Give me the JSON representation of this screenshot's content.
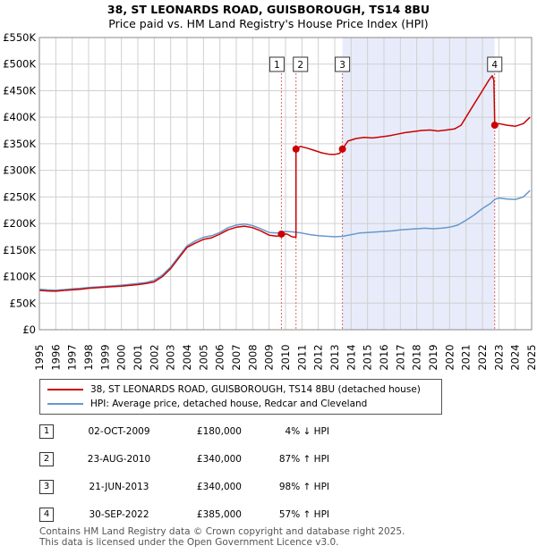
{
  "chart_data": {
    "type": "line",
    "title": "38, ST LEONARDS ROAD, GUISBOROUGH, TS14 8BU",
    "subtitle": "Price paid vs. HM Land Registry's House Price Index (HPI)",
    "xlim": [
      1995,
      2025
    ],
    "ylim": [
      0,
      550000
    ],
    "x_ticks": [
      "1995",
      "1996",
      "1997",
      "1998",
      "1999",
      "2000",
      "2001",
      "2002",
      "2003",
      "2004",
      "2005",
      "2006",
      "2007",
      "2008",
      "2009",
      "2010",
      "2011",
      "2012",
      "2013",
      "2014",
      "2015",
      "2016",
      "2017",
      "2018",
      "2019",
      "2020",
      "2021",
      "2022",
      "2023",
      "2024",
      "2025"
    ],
    "y_ticks": [
      {
        "value": 0,
        "label": "£0"
      },
      {
        "value": 50000,
        "label": "£50K"
      },
      {
        "value": 100000,
        "label": "£100K"
      },
      {
        "value": 150000,
        "label": "£150K"
      },
      {
        "value": 200000,
        "label": "£200K"
      },
      {
        "value": 250000,
        "label": "£250K"
      },
      {
        "value": 300000,
        "label": "£300K"
      },
      {
        "value": 350000,
        "label": "£350K"
      },
      {
        "value": 400000,
        "label": "£400K"
      },
      {
        "value": 450000,
        "label": "£450K"
      },
      {
        "value": 500000,
        "label": "£500K"
      },
      {
        "value": 550000,
        "label": "£550K"
      }
    ],
    "shaded_range": [
      2013.47,
      2022.75
    ],
    "series": [
      {
        "name": "38, ST LEONARDS ROAD, GUISBOROUGH, TS14 8BU (detached house)",
        "color": "#cc0000",
        "points": [
          [
            1995.0,
            74000
          ],
          [
            1995.5,
            73000
          ],
          [
            1996.0,
            72500
          ],
          [
            1996.5,
            74000
          ],
          [
            1997.0,
            75000
          ],
          [
            1997.5,
            76000
          ],
          [
            1998.0,
            78000
          ],
          [
            1998.5,
            79000
          ],
          [
            1999.0,
            80000
          ],
          [
            1999.5,
            81000
          ],
          [
            2000.0,
            82000
          ],
          [
            2000.5,
            83500
          ],
          [
            2001.0,
            85000
          ],
          [
            2001.5,
            87000
          ],
          [
            2002.0,
            90000
          ],
          [
            2002.5,
            100000
          ],
          [
            2003.0,
            115000
          ],
          [
            2003.5,
            135000
          ],
          [
            2004.0,
            155000
          ],
          [
            2004.5,
            163000
          ],
          [
            2005.0,
            170000
          ],
          [
            2005.5,
            173000
          ],
          [
            2006.0,
            180000
          ],
          [
            2006.5,
            188000
          ],
          [
            2007.0,
            193000
          ],
          [
            2007.5,
            195000
          ],
          [
            2008.0,
            192000
          ],
          [
            2008.5,
            186000
          ],
          [
            2009.0,
            178000
          ],
          [
            2009.5,
            176000
          ],
          [
            2009.75,
            180000
          ],
          [
            2010.1,
            180000
          ],
          [
            2010.4,
            175000
          ],
          [
            2010.64,
            174000
          ],
          [
            2010.64,
            340000
          ],
          [
            2010.9,
            345000
          ],
          [
            2011.3,
            342000
          ],
          [
            2011.7,
            338000
          ],
          [
            2012.2,
            333000
          ],
          [
            2012.7,
            330000
          ],
          [
            2013.0,
            330000
          ],
          [
            2013.3,
            332000
          ],
          [
            2013.47,
            340000
          ],
          [
            2013.8,
            355000
          ],
          [
            2014.3,
            360000
          ],
          [
            2014.8,
            362000
          ],
          [
            2015.3,
            361000
          ],
          [
            2015.8,
            363000
          ],
          [
            2016.3,
            365000
          ],
          [
            2016.8,
            368000
          ],
          [
            2017.3,
            371000
          ],
          [
            2017.8,
            373000
          ],
          [
            2018.3,
            375000
          ],
          [
            2018.8,
            376000
          ],
          [
            2019.3,
            374000
          ],
          [
            2019.8,
            376000
          ],
          [
            2020.3,
            378000
          ],
          [
            2020.7,
            385000
          ],
          [
            2021.1,
            405000
          ],
          [
            2021.5,
            425000
          ],
          [
            2022.0,
            450000
          ],
          [
            2022.4,
            470000
          ],
          [
            2022.6,
            478000
          ],
          [
            2022.7,
            470000
          ],
          [
            2022.75,
            385000
          ],
          [
            2023.0,
            388000
          ],
          [
            2023.5,
            385000
          ],
          [
            2024.0,
            383000
          ],
          [
            2024.5,
            388000
          ],
          [
            2024.9,
            400000
          ]
        ]
      },
      {
        "name": "HPI: Average price, detached house, Redcar and Cleveland",
        "color": "#6699cc",
        "points": [
          [
            1995.0,
            76000
          ],
          [
            1995.5,
            75000
          ],
          [
            1996.0,
            74500
          ],
          [
            1996.5,
            75500
          ],
          [
            1997.0,
            77000
          ],
          [
            1997.5,
            78000
          ],
          [
            1998.0,
            79500
          ],
          [
            1998.5,
            80500
          ],
          [
            1999.0,
            81500
          ],
          [
            1999.5,
            82500
          ],
          [
            2000.0,
            84000
          ],
          [
            2000.5,
            85500
          ],
          [
            2001.0,
            87000
          ],
          [
            2001.5,
            89000
          ],
          [
            2002.0,
            93000
          ],
          [
            2002.5,
            103000
          ],
          [
            2003.0,
            118000
          ],
          [
            2003.5,
            138000
          ],
          [
            2004.0,
            158000
          ],
          [
            2004.5,
            167000
          ],
          [
            2005.0,
            174000
          ],
          [
            2005.5,
            177000
          ],
          [
            2006.0,
            183000
          ],
          [
            2006.5,
            192000
          ],
          [
            2007.0,
            197000
          ],
          [
            2007.5,
            199000
          ],
          [
            2008.0,
            196000
          ],
          [
            2008.5,
            190000
          ],
          [
            2009.0,
            183000
          ],
          [
            2009.5,
            182000
          ],
          [
            2010.0,
            185000
          ],
          [
            2010.5,
            184000
          ],
          [
            2011.0,
            182000
          ],
          [
            2011.5,
            179000
          ],
          [
            2012.0,
            177000
          ],
          [
            2012.5,
            176000
          ],
          [
            2013.0,
            175000
          ],
          [
            2013.5,
            176000
          ],
          [
            2014.0,
            179000
          ],
          [
            2014.5,
            182000
          ],
          [
            2015.0,
            183000
          ],
          [
            2015.5,
            184000
          ],
          [
            2016.0,
            185000
          ],
          [
            2016.5,
            186000
          ],
          [
            2017.0,
            188000
          ],
          [
            2017.5,
            189000
          ],
          [
            2018.0,
            190000
          ],
          [
            2018.5,
            191000
          ],
          [
            2019.0,
            190000
          ],
          [
            2019.5,
            191000
          ],
          [
            2020.0,
            193000
          ],
          [
            2020.5,
            197000
          ],
          [
            2021.0,
            206000
          ],
          [
            2021.5,
            216000
          ],
          [
            2022.0,
            228000
          ],
          [
            2022.5,
            238000
          ],
          [
            2022.75,
            245000
          ],
          [
            2023.0,
            248000
          ],
          [
            2023.5,
            246000
          ],
          [
            2024.0,
            245000
          ],
          [
            2024.5,
            250000
          ],
          [
            2024.9,
            262000
          ]
        ]
      }
    ],
    "sales": [
      {
        "num": "1",
        "x": 2009.75,
        "price_value": 180000
      },
      {
        "num": "2",
        "x": 2010.64,
        "price_value": 340000
      },
      {
        "num": "3",
        "x": 2013.47,
        "price_value": 340000
      },
      {
        "num": "4",
        "x": 2022.75,
        "price_value": 385000
      }
    ]
  },
  "legend": {
    "property_label": "38, ST LEONARDS ROAD, GUISBOROUGH, TS14 8BU (detached house)",
    "hpi_label": "HPI: Average price, detached house, Redcar and Cleveland"
  },
  "table": [
    {
      "num": "1",
      "date": "02-OCT-2009",
      "price": "£180,000",
      "hpi": "4% ↓ HPI"
    },
    {
      "num": "2",
      "date": "23-AUG-2010",
      "price": "£340,000",
      "hpi": "87% ↑ HPI"
    },
    {
      "num": "3",
      "date": "21-JUN-2013",
      "price": "£340,000",
      "hpi": "98% ↑ HPI"
    },
    {
      "num": "4",
      "date": "30-SEP-2022",
      "price": "£385,000",
      "hpi": "57% ↑ HPI"
    }
  ],
  "footer": {
    "line1": "Contains HM Land Registry data © Crown copyright and database right 2025.",
    "line2": "This data is licensed under the Open Government Licence v3.0."
  },
  "colors": {
    "property": "#cc0000",
    "hpi": "#6699cc",
    "shade": "#e8ecfa",
    "grid": "#d0d0d0"
  }
}
